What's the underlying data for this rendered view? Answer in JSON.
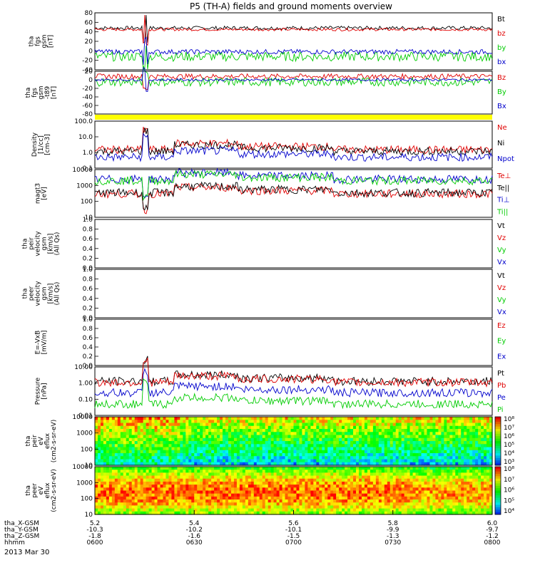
{
  "title": "P5 (TH-A) fields and ground moments overview",
  "date": "2013 Mar 30",
  "colors": {
    "black": "#000000",
    "red": "#e00000",
    "green": "#00cc00",
    "blue": "#0000cc",
    "yellow": "#ffff00"
  },
  "chart_data": [
    {
      "type": "line",
      "id": "fgs_gsm",
      "ylabel": [
        "tha",
        "fgs",
        "gsm",
        "[nT]"
      ],
      "ylim": [
        -40,
        80
      ],
      "ytick_labels": [
        "80",
        "60",
        "40",
        "20",
        "0",
        "-20",
        "-40"
      ],
      "legend": [
        "Bt",
        "bz",
        "by",
        "bx"
      ],
      "series": [
        {
          "name": "Bt",
          "color": "black",
          "base": 48,
          "amp": 4
        },
        {
          "name": "bz",
          "color": "red",
          "base": 45,
          "amp": 3
        },
        {
          "name": "by",
          "color": "green",
          "base": -12,
          "amp": 10
        },
        {
          "name": "bx",
          "color": "blue",
          "base": -2,
          "amp": 5
        }
      ]
    },
    {
      "type": "line",
      "id": "fgs_gsm_dtrend",
      "ylabel": [
        "tha",
        "fgs",
        "gsm",
        "-t89"
      ],
      "ylabel2": "[nT]",
      "ylim": [
        -80,
        20
      ],
      "ytick_labels": [
        "20",
        "0",
        "-20",
        "-40",
        "-60",
        "-80"
      ],
      "legend": [
        "Bz",
        "By",
        "Bx"
      ],
      "series": [
        {
          "name": "Bz",
          "color": "red",
          "base": 8,
          "amp": 6
        },
        {
          "name": "By",
          "color": "green",
          "base": -5,
          "amp": 10
        },
        {
          "name": "Bx",
          "color": "blue",
          "base": 0,
          "amp": 3
        }
      ]
    },
    {
      "type": "bar",
      "id": "mode_bar",
      "color": "yellow"
    },
    {
      "type": "line",
      "id": "density",
      "scale": "log",
      "ylabel": [
        "Density",
        "[1/cc]",
        "[cm-3]"
      ],
      "ylim": [
        0.1,
        100
      ],
      "ytick_labels": [
        "100.0",
        "10.0",
        "1.0",
        "0.1"
      ],
      "legend": [
        "Ne",
        "Ni",
        "Npot"
      ],
      "series": [
        {
          "name": "Ne",
          "color": "red",
          "base": 1.5
        },
        {
          "name": "Ni",
          "color": "black",
          "base": 1.2
        },
        {
          "name": "Npot",
          "color": "blue",
          "base": 0.5
        }
      ]
    },
    {
      "type": "line",
      "id": "temperature",
      "scale": "log",
      "ylabel": [
        "magt3",
        "[eV]"
      ],
      "ylim": [
        10,
        10000
      ],
      "ytick_labels": [
        "10000",
        "1000",
        "100",
        "10"
      ],
      "legend": [
        "Te⊥",
        "Te||",
        "Ti⊥",
        "Ti||"
      ],
      "series": [
        {
          "name": "Te⊥",
          "color": "red",
          "base": 300
        },
        {
          "name": "Te||",
          "color": "black",
          "base": 350
        },
        {
          "name": "Ti⊥",
          "color": "blue",
          "base": 2500
        },
        {
          "name": "Ti||",
          "color": "green",
          "base": 2000
        }
      ]
    },
    {
      "type": "line",
      "id": "peir_velocity",
      "ylabel": [
        "tha",
        "peir",
        "velocity",
        "gsm",
        "[km/s]"
      ],
      "overlap": "(All Qs)",
      "ylim": [
        0,
        1
      ],
      "ytick_labels": [
        "1.0",
        "0.8",
        "0.6",
        "0.4",
        "0.2",
        "0.0"
      ],
      "legend": [
        "Vt",
        "Vz",
        "Vy",
        "Vx"
      ],
      "series": []
    },
    {
      "type": "line",
      "id": "peer_velocity",
      "ylabel": [
        "tha",
        "peer",
        "velocity",
        "gsm",
        "[km/s]"
      ],
      "overlap": "(All Qs)",
      "ylim": [
        0,
        1
      ],
      "ytick_labels": [
        "1.0",
        "0.8",
        "0.6",
        "0.4",
        "0.2",
        "0.0"
      ],
      "legend": [
        "Vt",
        "Vz",
        "Vy",
        "Vx"
      ],
      "series": []
    },
    {
      "type": "line",
      "id": "efield",
      "ylabel": [
        "E=-VxB",
        "[mV/m]"
      ],
      "ylim": [
        0,
        1
      ],
      "ytick_labels": [
        "1.0",
        "0.8",
        "0.6",
        "0.4",
        "0.2",
        "0.0"
      ],
      "legend": [
        "Ez",
        "Ey",
        "Ex"
      ],
      "series": []
    },
    {
      "type": "line",
      "id": "pressure",
      "scale": "log",
      "ylabel": [
        "Pressure",
        "[nPa]"
      ],
      "ylim": [
        0.01,
        10
      ],
      "ytick_labels": [
        "10.00",
        "1.00",
        "0.10",
        "0.01"
      ],
      "legend": [
        "Pt",
        "Pb",
        "Pe",
        "Pi"
      ],
      "series": [
        {
          "name": "Pt",
          "color": "black",
          "base": 1.3
        },
        {
          "name": "Pb",
          "color": "red",
          "base": 1.1
        },
        {
          "name": "Pe",
          "color": "blue",
          "base": 0.25
        },
        {
          "name": "Pi",
          "color": "green",
          "base": 0.05
        }
      ]
    },
    {
      "type": "heatmap",
      "id": "peir_eflux",
      "scale": "log",
      "ylabel": [
        "tha",
        "peir",
        "eV",
        "eflux",
        "(cm2-s-sr-eV)"
      ],
      "ylim": [
        10,
        10000
      ],
      "ytick_labels": [
        "10000",
        "1000",
        "100",
        "10"
      ],
      "colorbar_labels": [
        "10⁸",
        "10⁷",
        "10⁶",
        "10⁵",
        "10⁴",
        "10³"
      ]
    },
    {
      "type": "heatmap",
      "id": "peer_eflux",
      "scale": "log",
      "ylabel": [
        "tha",
        "peer",
        "eV",
        "eflux",
        "(cm2-s-sr-eV)"
      ],
      "ylim": [
        10,
        10000
      ],
      "ytick_labels": [
        "10000",
        "1000",
        "100",
        "10"
      ],
      "colorbar_labels": [
        "10⁸",
        "10⁷",
        "10⁶",
        "10⁵",
        "10⁴"
      ]
    }
  ],
  "xaxis": {
    "row_labels": [
      "tha_X-GSM",
      "tha_Y-GSM",
      "tha_Z-GSM",
      "hhmm"
    ],
    "ticks": [
      {
        "values": [
          "5.2",
          "-10.3",
          "-1.8",
          "0600"
        ]
      },
      {
        "values": [
          "5.4",
          "-10.2",
          "-1.6",
          "0630"
        ]
      },
      {
        "values": [
          "5.6",
          "-10.1",
          "-1.5",
          "0700"
        ]
      },
      {
        "values": [
          "5.8",
          "-9.9",
          "-1.3",
          "0730"
        ]
      },
      {
        "values": [
          "6.0",
          "-9.7",
          "-1.2",
          "0800"
        ]
      }
    ]
  }
}
